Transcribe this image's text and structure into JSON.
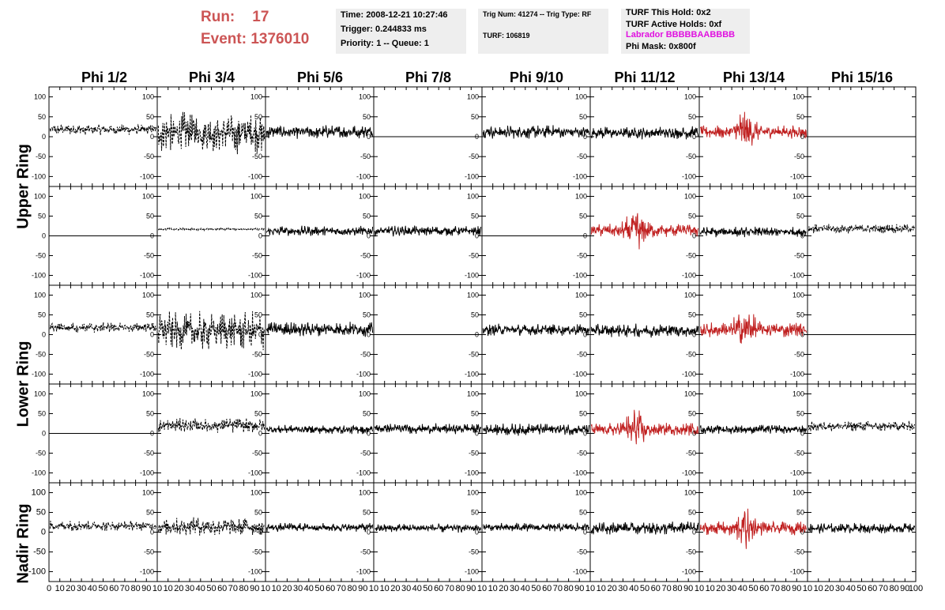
{
  "header": {
    "run_label": "Run:",
    "run_value": "17",
    "event_label": "Event:",
    "event_value": "1376010",
    "time_line": "Time: 2008-12-21 10:27:46",
    "trigger_line": "Trigger: 0.244833 ms",
    "priority_line": "Priority: 1 -- Queue: 1",
    "trig_line": "Trig Num: 41274 -- Trig Type: RF",
    "turf_line": "TURF: 106819",
    "turf_hold": "TURF This Hold: 0x2",
    "turf_active": "TURF Active Holds: 0xf",
    "labrador": "Labrador BBBBBAABBBB",
    "phi_mask": "Phi Mask: 0x800f"
  },
  "colors": {
    "title_red": "#cc5555",
    "labrador_magenta": "#e010e0",
    "trace_black": "#000000",
    "trace_red": "#c02020",
    "info_box": "#eeeeee"
  },
  "columns": [
    "Phi 1/2",
    "Phi 3/4",
    "Phi 5/6",
    "Phi 7/8",
    "Phi 9/10",
    "Phi 11/12",
    "Phi 13/14",
    "Phi 15/16"
  ],
  "rows": [
    "Upper Ring",
    "Lower Ring",
    "Nadir Ring"
  ],
  "chart_data": {
    "type": "line",
    "description_axes": "8 x 5 grid of waveform panels",
    "xlim": [
      0,
      100
    ],
    "ylim": [
      -125,
      125
    ],
    "y_ticks": [
      -100,
      -50,
      0,
      50,
      100
    ],
    "x_ticks": [
      0,
      10,
      20,
      30,
      40,
      50,
      60,
      70,
      80,
      90,
      100
    ],
    "x_tick_labels_first_panel": [
      "0",
      "10",
      "20",
      "30",
      "40",
      "50",
      "60",
      "70",
      "80",
      "90",
      "10"
    ],
    "x_tick_labels_middle_panel": [
      "10",
      "20",
      "30",
      "40",
      "50",
      "60",
      "70",
      "80",
      "90",
      "10"
    ],
    "x_tick_labels_last_panel": [
      "10",
      "20",
      "30",
      "40",
      "50",
      "60",
      "70",
      "80",
      "90",
      "100"
    ],
    "panels": [
      [
        {
          "style": "dashed",
          "amp": 14,
          "offset": 18,
          "color": "black"
        },
        {
          "style": "dashed",
          "amp": 55,
          "offset": 10,
          "color": "black"
        },
        {
          "style": "solid",
          "amp": 18,
          "offset": 12,
          "color": "black"
        },
        {
          "style": "flat",
          "amp": 0,
          "offset": 0,
          "color": "black"
        },
        {
          "style": "solid",
          "amp": 18,
          "offset": 12,
          "color": "black"
        },
        {
          "style": "solid",
          "amp": 17,
          "offset": 10,
          "color": "black"
        },
        {
          "style": "solid",
          "amp": 18,
          "offset": 12,
          "color": "red",
          "burst": true
        },
        {
          "style": "flat",
          "amp": 0,
          "offset": 0,
          "color": "black"
        }
      ],
      [
        {
          "style": "flat",
          "amp": 0,
          "offset": 0,
          "color": "black"
        },
        {
          "style": "dashed",
          "amp": 3,
          "offset": 17,
          "color": "black"
        },
        {
          "style": "solid",
          "amp": 14,
          "offset": 12,
          "color": "black"
        },
        {
          "style": "solid",
          "amp": 14,
          "offset": 12,
          "color": "black"
        },
        {
          "style": "flat",
          "amp": 0,
          "offset": 0,
          "color": "black"
        },
        {
          "style": "solid",
          "amp": 18,
          "offset": 14,
          "color": "red",
          "burst": true
        },
        {
          "style": "solid",
          "amp": 14,
          "offset": 10,
          "color": "black"
        },
        {
          "style": "dashed",
          "amp": 12,
          "offset": 18,
          "color": "black"
        }
      ],
      [
        {
          "style": "dashed",
          "amp": 14,
          "offset": 18,
          "color": "black"
        },
        {
          "style": "dashed",
          "amp": 52,
          "offset": 10,
          "color": "black"
        },
        {
          "style": "solid",
          "amp": 20,
          "offset": 14,
          "color": "black"
        },
        {
          "style": "flat",
          "amp": 0,
          "offset": 0,
          "color": "black"
        },
        {
          "style": "solid",
          "amp": 16,
          "offset": 12,
          "color": "black"
        },
        {
          "style": "solid",
          "amp": 18,
          "offset": 10,
          "color": "black"
        },
        {
          "style": "solid",
          "amp": 20,
          "offset": 12,
          "color": "red",
          "burst": true
        },
        {
          "style": "flat",
          "amp": 0,
          "offset": 0,
          "color": "black"
        }
      ],
      [
        {
          "style": "flat",
          "amp": 0,
          "offset": 0,
          "color": "black"
        },
        {
          "style": "dashed",
          "amp": 20,
          "offset": 20,
          "color": "black"
        },
        {
          "style": "solid",
          "amp": 12,
          "offset": 10,
          "color": "black"
        },
        {
          "style": "solid",
          "amp": 14,
          "offset": 12,
          "color": "black"
        },
        {
          "style": "solid",
          "amp": 16,
          "offset": 10,
          "color": "black"
        },
        {
          "style": "solid",
          "amp": 18,
          "offset": 10,
          "color": "red",
          "burst": true
        },
        {
          "style": "solid",
          "amp": 12,
          "offset": 10,
          "color": "black"
        },
        {
          "style": "dashed",
          "amp": 14,
          "offset": 18,
          "color": "black"
        }
      ],
      [
        {
          "style": "dashed",
          "amp": 14,
          "offset": 16,
          "color": "black"
        },
        {
          "style": "dashed",
          "amp": 24,
          "offset": 14,
          "color": "black"
        },
        {
          "style": "solid",
          "amp": 12,
          "offset": 12,
          "color": "black"
        },
        {
          "style": "solid",
          "amp": 12,
          "offset": 10,
          "color": "black"
        },
        {
          "style": "solid",
          "amp": 12,
          "offset": 12,
          "color": "black"
        },
        {
          "style": "solid",
          "amp": 18,
          "offset": 10,
          "color": "black"
        },
        {
          "style": "solid",
          "amp": 18,
          "offset": 10,
          "color": "red",
          "burst": true
        },
        {
          "style": "solid",
          "amp": 14,
          "offset": 10,
          "color": "black"
        }
      ]
    ]
  }
}
